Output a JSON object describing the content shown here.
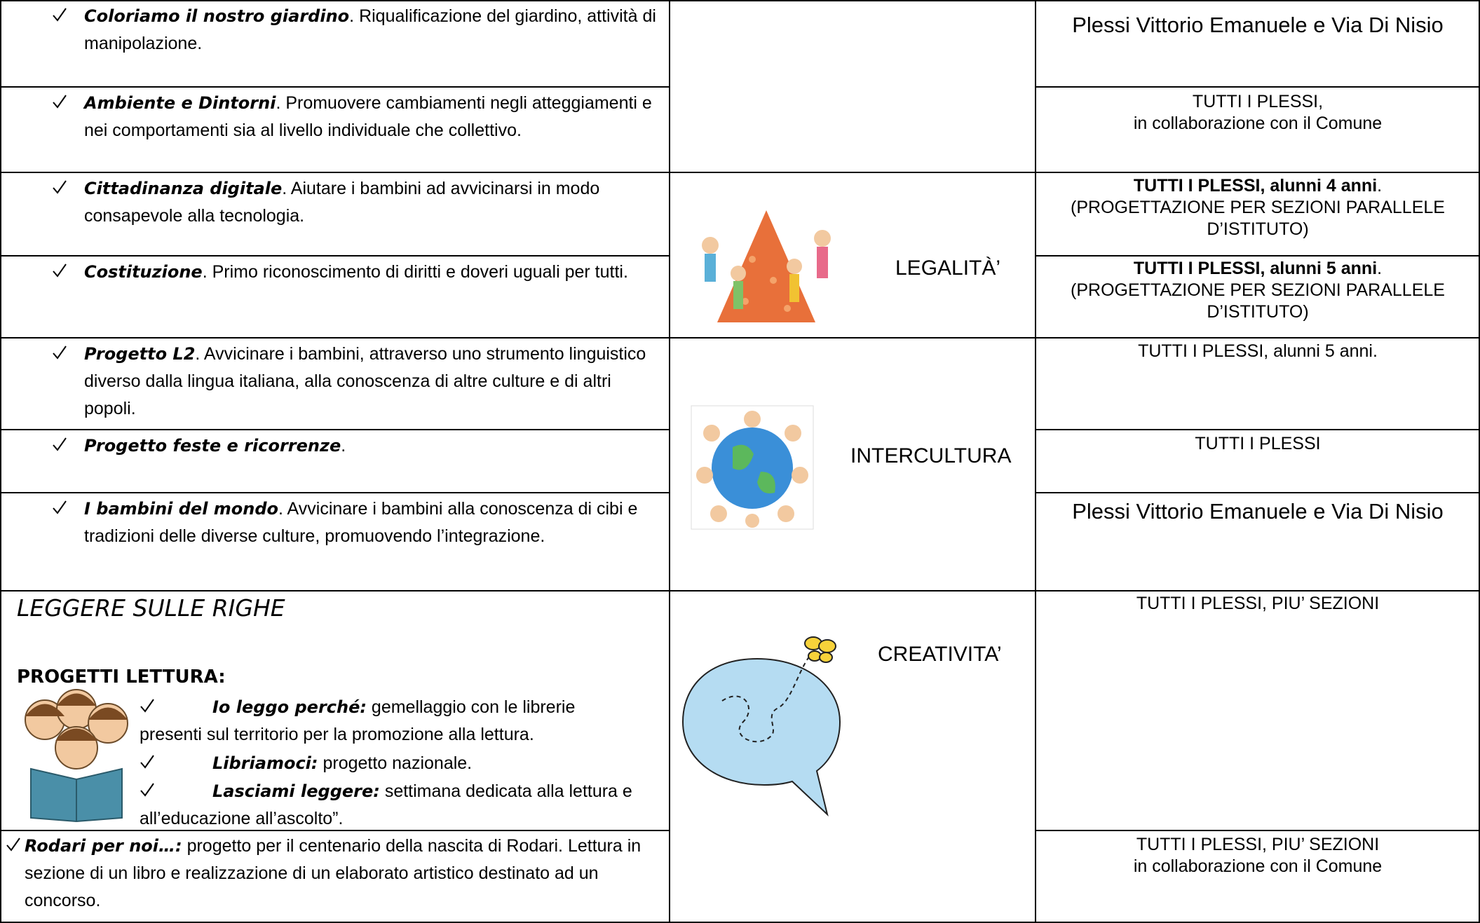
{
  "rows": [
    {
      "title": "Coloriamo il nostro giardino",
      "text": ". Riqualificazione del giardino, attività di manipolazione.",
      "where": "Plessi Vittorio Emanuele e Via Di Nisio"
    },
    {
      "title": "Ambiente e Dintorni",
      "text": ". Promuovere cambiamenti negli atteggiamenti e nei comportamenti sia al livello individuale che collettivo.",
      "where": "TUTTI I PLESSI,",
      "where2": "in collaborazione con il Comune"
    },
    {
      "title": "Cittadinanza digitale",
      "text": ". Aiutare i bambini ad avvicinarsi in modo consapevole alla tecnologia.",
      "where_bold": "TUTTI I PLESSI, alunni 4 anni",
      "where": ".",
      "where2": "(PROGETTAZIONE PER SEZIONI PARALLELE D’ISTITUTO)"
    },
    {
      "title": "Costituzione",
      "text": ". Primo riconoscimento di diritti e doveri uguali per tutti.",
      "where_bold": "TUTTI I PLESSI, alunni 5 anni",
      "where": ".",
      "where2": "(PROGETTAZIONE PER SEZIONI PARALLELE D’ISTITUTO)"
    },
    {
      "title": "Progetto L2",
      "text": ". Avvicinare i bambini, attraverso uno strumento linguistico diverso dalla lingua italiana, alla conoscenza di altre culture e di altri popoli.",
      "where": "TUTTI I PLESSI, alunni 5 anni."
    },
    {
      "title": "Progetto feste e ricorrenze",
      "text": ".",
      "where": "TUTTI I PLESSI"
    },
    {
      "title": "I bambini del mondo",
      "text": ". Avvicinare i bambini alla conoscenza di cibi e tradizioni delle diverse culture, promuovendo l’integrazione.",
      "where": "Plessi Vittorio Emanuele e Via Di Nisio"
    }
  ],
  "reading": {
    "heading": "LEGGERE SULLE RIGHE",
    "subheading": "PROGETTI LETTURA:",
    "items": [
      {
        "title": "Io leggo perché:",
        "text": " gemellaggio con le librerie presenti sul territorio per la promozione alla lettura."
      },
      {
        "title": "Libriamoci:",
        "text": " progetto nazionale."
      },
      {
        "title": "Lasciami leggere:",
        "text": " settimana dedicata alla lettura e all’educazione all’ascolto”."
      }
    ],
    "where": "TUTTI I PLESSI, PIU’ SEZIONI"
  },
  "rodari": {
    "title": "Rodari per noi…:",
    "text": " progetto per il centenario della nascita di Rodari. Lettura in sezione di un libro e realizzazione di un elaborato artistico destinato ad un concorso.",
    "where": "TUTTI I PLESSI, PIU’ SEZIONI",
    "where2": "in collaborazione con il Comune"
  },
  "themes": [
    "LEGALITÀ’",
    "INTERCULTURA",
    "CREATIVITA’"
  ]
}
